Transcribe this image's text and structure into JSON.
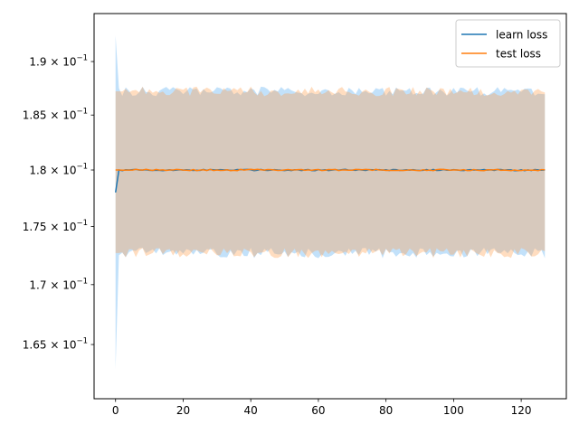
{
  "chart_data": {
    "type": "line",
    "title": "",
    "xlabel": "",
    "ylabel": "",
    "yscale": "log",
    "xlim": [
      -6.35,
      133.35
    ],
    "ylim": [
      0.1606,
      0.1946
    ],
    "x_ticks": [
      0,
      20,
      40,
      60,
      80,
      100,
      120
    ],
    "x_tick_labels": [
      "0",
      "20",
      "40",
      "60",
      "80",
      "100",
      "120"
    ],
    "y_ticks": [
      0.165,
      0.17,
      0.175,
      0.18,
      0.185,
      0.19
    ],
    "y_tick_mantissas": [
      "1.65",
      "1.7",
      "1.75",
      "1.8",
      "1.85",
      "1.9"
    ],
    "y_tick_base": "10",
    "y_tick_exponent": "−1",
    "grid": false,
    "legend": {
      "position": "top-right"
    },
    "series": [
      {
        "name": "learn loss",
        "color": "#1f77b4",
        "band_color": "#4fa8f0",
        "x_start": 0,
        "x_end": 127,
        "mean": {
          "first_two": [
            0.178,
            0.18
          ],
          "rest": 0.18
        },
        "band_upper": {
          "first_two": [
            0.1925,
            0.1875
          ],
          "typical": 0.1872
        },
        "band_lower": {
          "first_two": [
            0.163,
            0.1725
          ],
          "typical": 0.1727
        }
      },
      {
        "name": "test loss",
        "color": "#ff7f0e",
        "band_color": "#ff9f4a",
        "x_start": 0,
        "x_end": 127,
        "mean": {
          "first_two": [
            0.18,
            0.18
          ],
          "rest": 0.18
        },
        "band_upper": {
          "first_two": [
            0.1872,
            0.1872
          ],
          "typical": 0.1872
        },
        "band_lower": {
          "first_two": [
            0.1727,
            0.1727
          ],
          "typical": 0.1727
        }
      }
    ]
  }
}
